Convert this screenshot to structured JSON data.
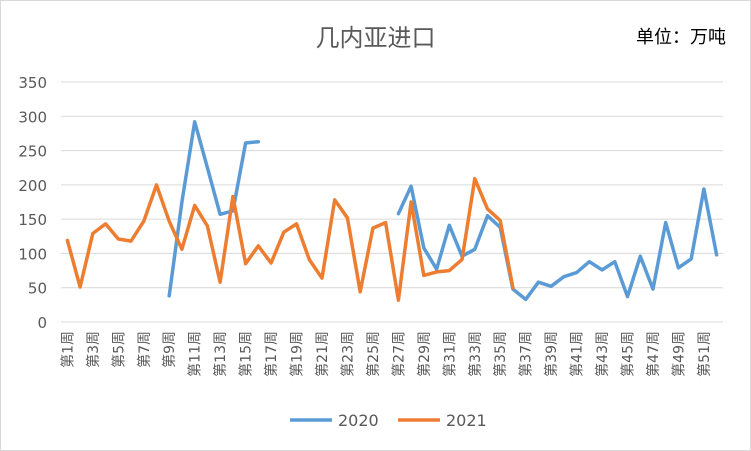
{
  "chart_data": {
    "type": "line",
    "title": "几内亚进口",
    "unit_label": "单位：万吨",
    "ylim": [
      0,
      350
    ],
    "yticks": [
      0,
      50,
      100,
      150,
      200,
      250,
      300,
      350
    ],
    "xticks": [
      "第1周",
      "第3周",
      "第5周",
      "第7周",
      "第9周",
      "第11周",
      "第13周",
      "第15周",
      "第17周",
      "第19周",
      "第21周",
      "第23周",
      "第25周",
      "第27周",
      "第29周",
      "第31周",
      "第33周",
      "第35周",
      "第37周",
      "第39周",
      "第41周",
      "第43周",
      "第45周",
      "第47周",
      "第49周",
      "第51周"
    ],
    "grid": true,
    "legend_position": "bottom",
    "series": [
      {
        "name": "2020",
        "color": "#5b9bd5",
        "values": [
          null,
          null,
          null,
          null,
          null,
          null,
          null,
          null,
          38,
          175,
          292,
          225,
          157,
          162,
          261,
          263,
          null,
          null,
          null,
          null,
          null,
          null,
          null,
          null,
          null,
          null,
          158,
          198,
          108,
          77,
          141,
          96,
          106,
          155,
          138,
          48,
          33,
          58,
          52,
          66,
          72,
          88,
          76,
          88,
          37,
          96,
          48,
          145,
          79,
          92,
          194,
          98
        ]
      },
      {
        "name": "2021",
        "color": "#ed7d31",
        "values": [
          119,
          51,
          129,
          143,
          121,
          118,
          147,
          200,
          147,
          106,
          170,
          140,
          58,
          183,
          85,
          111,
          86,
          131,
          143,
          91,
          64,
          178,
          152,
          44,
          137,
          145,
          32,
          175,
          68,
          73,
          75,
          91,
          209,
          165,
          148,
          50
        ]
      }
    ]
  }
}
